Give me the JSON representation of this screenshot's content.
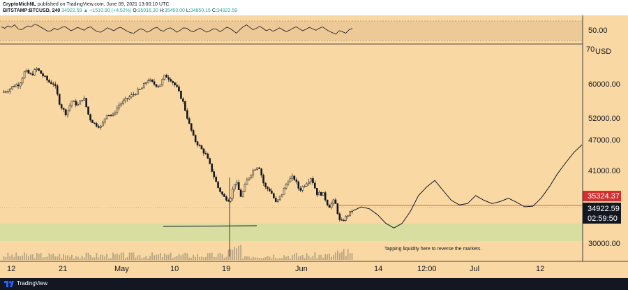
{
  "header": {
    "publisher": "CryptoMichNL",
    "published_text": "published on TradingView.com, June 09, 2021 13:00:10 UTC",
    "symbol": "BITSTAMP:BTCUSD, 240",
    "last_price": "34922.59",
    "change": "▲ +1510.90 (+4.52%)",
    "o_label": "O:",
    "o_value": "35016.30",
    "h_label": "H:",
    "h_value": "35450.00",
    "l_label": "L:",
    "l_value": "34850.15",
    "c_label": "C:",
    "c_value": "34922.59"
  },
  "rsi": {
    "axis_label": "50.00",
    "top_label": "70",
    "values": [
      58,
      55,
      60,
      57,
      62,
      54,
      52,
      56,
      60,
      58,
      63,
      61,
      57,
      53,
      49,
      50,
      55,
      52,
      56,
      59,
      55,
      50,
      53,
      57,
      54,
      51,
      56,
      58,
      52,
      48,
      47,
      51,
      56,
      53,
      50,
      55,
      57,
      53,
      49,
      46,
      45,
      50,
      54,
      52,
      47,
      50,
      55,
      57,
      51,
      49,
      54,
      56,
      52,
      47,
      51,
      56,
      55,
      50,
      48,
      52,
      55,
      51,
      47,
      50,
      54,
      53,
      48,
      52,
      57,
      55,
      50,
      45,
      52,
      58,
      62,
      57,
      52,
      55,
      59,
      55,
      50,
      53,
      49,
      52,
      56,
      52,
      48,
      51,
      55,
      58,
      54,
      50,
      53,
      57,
      54,
      51,
      55,
      58,
      53,
      49,
      46,
      43,
      50,
      48,
      45,
      52,
      55
    ]
  },
  "price_axis": {
    "unit": "USD",
    "ticks": [
      "60000.00",
      "52000.00",
      "47000.00",
      "41000.00",
      "30000.00"
    ],
    "current_price": "34922.59",
    "countdown": "02:59:50",
    "resistance_label": "35324.37"
  },
  "time_axis": {
    "labels": [
      "12",
      "21",
      "May",
      "10",
      "19",
      "Jun",
      "14",
      "12:00",
      "Jul",
      "12"
    ]
  },
  "annotation": "Tapping liquidity here to reverse the markets.",
  "colors": {
    "background": "#f9d8a3",
    "zone": "#d7dea0",
    "resistance_line": "#ef5350",
    "candles": "#131722",
    "price_label_bg": "#131722",
    "resistance_label_bg": "#d32f2f"
  },
  "chart_data": {
    "type": "candlestick",
    "price_series": [
      58000,
      58500,
      59500,
      60000,
      63000,
      62000,
      63500,
      62000,
      60500,
      60000,
      55000,
      53000,
      56000,
      55000,
      57000,
      52000,
      50500,
      50000,
      53000,
      52500,
      55000,
      56000,
      57000,
      58000,
      59000,
      61000,
      60000,
      59500,
      62000,
      61000,
      59000,
      56000,
      51000,
      47000,
      45500,
      44000,
      41000,
      38500,
      37000,
      36500,
      39500,
      37000,
      39500,
      41000,
      42000,
      38500,
      38000,
      36000,
      37500,
      39500,
      40000,
      38000,
      39000,
      40000,
      37500,
      37500,
      35500,
      36500,
      33000,
      34000,
      34922
    ],
    "projection": [
      34922,
      35500,
      35200,
      34300,
      33000,
      32300,
      33000,
      34800,
      37200,
      38500,
      39500,
      38000,
      36500,
      35800,
      36000,
      37200,
      36500,
      36000,
      36300,
      36800,
      36200,
      35500,
      35600,
      36800,
      38500,
      40500,
      42500,
      44500,
      46000
    ]
  },
  "footer": {
    "brand": "TradingView"
  }
}
